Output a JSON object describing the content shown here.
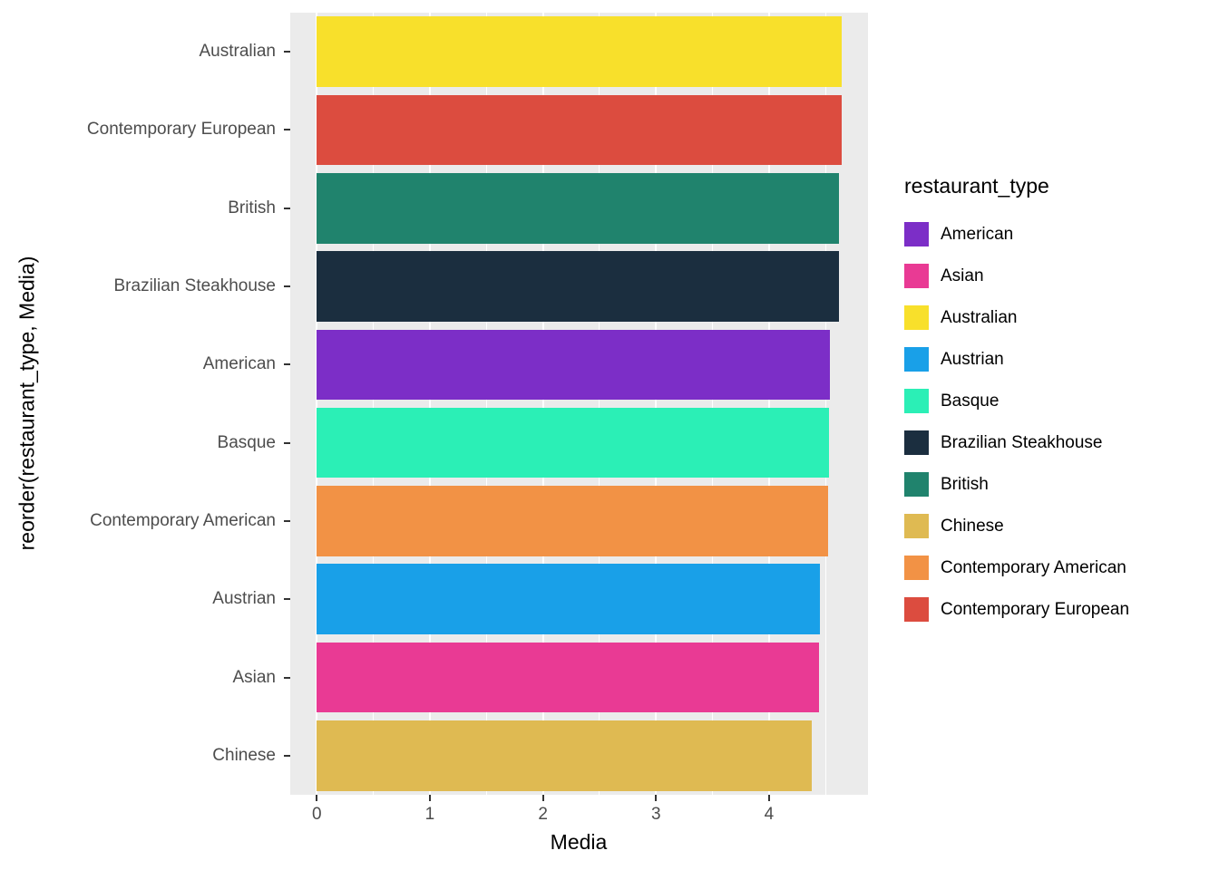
{
  "chart_data": {
    "type": "bar",
    "orientation": "horizontal",
    "title": "",
    "xlabel": "Media",
    "ylabel": "reorder(restaurant_type, Media)",
    "categories": [
      "Australian",
      "Contemporary European",
      "British",
      "Brazilian Steakhouse",
      "American",
      "Basque",
      "Contemporary American",
      "Austrian",
      "Asian",
      "Chinese"
    ],
    "values": [
      4.64,
      4.64,
      4.62,
      4.62,
      4.54,
      4.53,
      4.52,
      4.45,
      4.44,
      4.38
    ],
    "x_ticks": [
      0,
      1,
      2,
      3,
      4
    ],
    "x_minor_ticks": [
      0.5,
      1.5,
      2.5,
      3.5,
      4.5
    ],
    "xlim": [
      -0.235,
      4.875
    ],
    "grid": "on",
    "panel_background": "#EBEBEB",
    "gridline_color": "#FFFFFF",
    "colors": {
      "American": "#7C2EC7",
      "Asian": "#E93A94",
      "Australian": "#F8E02B",
      "Austrian": "#19A0E8",
      "Basque": "#2BEFB6",
      "Brazilian Steakhouse": "#1B2E3F",
      "British": "#20836D",
      "Chinese": "#DFBA52",
      "Contemporary American": "#F29245",
      "Contemporary European": "#DC4C3F"
    },
    "legend": {
      "title": "restaurant_type",
      "position": "right",
      "labels": [
        "American",
        "Asian",
        "Australian",
        "Austrian",
        "Basque",
        "Brazilian Steakhouse",
        "British",
        "Chinese",
        "Contemporary American",
        "Contemporary European"
      ]
    }
  }
}
